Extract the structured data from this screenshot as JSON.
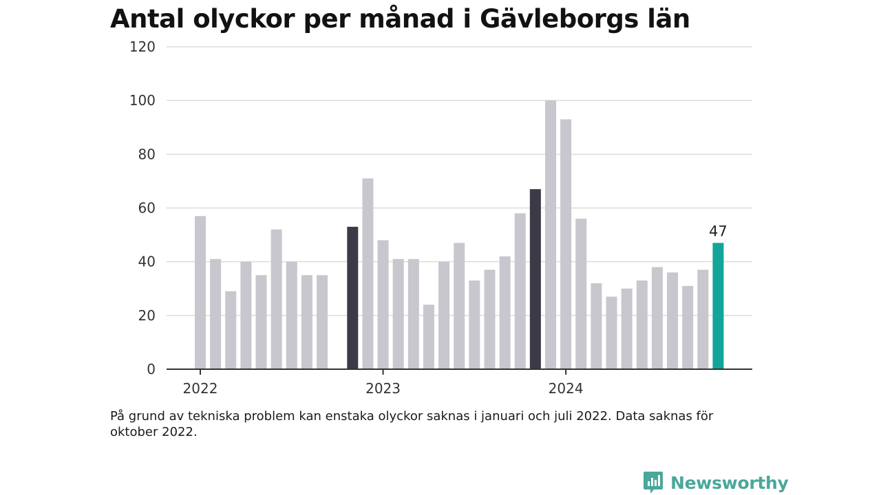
{
  "title": "Antal olyckor per månad i Gävleborgs län",
  "note": "På grund av tekniska problem kan enstaka olyckor saknas i januari och juli 2022. Data saknas för oktober 2022.",
  "brand": {
    "name": "Newsworthy",
    "icon": "newsworthy-logo-icon"
  },
  "colors": {
    "bar": "#c8c7cd",
    "january": "#3b3a46",
    "latest": "#13a59a",
    "grid": "#dcdcdc",
    "axis": "#333333"
  },
  "chart_data": {
    "type": "bar",
    "title": "Antal olyckor per månad i Gävleborgs län",
    "xlabel": "",
    "ylabel": "",
    "ylim": [
      0,
      120
    ],
    "yticks": [
      0,
      20,
      40,
      60,
      80,
      100,
      120
    ],
    "xticks": [
      {
        "label": "2022",
        "month": "2022-01"
      },
      {
        "label": "2023",
        "month": "2023-01"
      },
      {
        "label": "2024",
        "month": "2024-01"
      }
    ],
    "categories": [
      "2022-01",
      "2022-02",
      "2022-03",
      "2022-04",
      "2022-05",
      "2022-06",
      "2022-07",
      "2022-08",
      "2022-09",
      "2022-10",
      "2022-11",
      "2022-12",
      "2023-01",
      "2023-02",
      "2023-03",
      "2023-04",
      "2023-05",
      "2023-06",
      "2023-07",
      "2023-08",
      "2023-09",
      "2023-10",
      "2023-11",
      "2023-12",
      "2024-01",
      "2024-02",
      "2024-03",
      "2024-04",
      "2024-05",
      "2024-06",
      "2024-07",
      "2024-08",
      "2024-09",
      "2024-10",
      "2024-11"
    ],
    "values": [
      57,
      41,
      29,
      40,
      35,
      52,
      40,
      35,
      35,
      null,
      53,
      71,
      48,
      41,
      41,
      24,
      40,
      47,
      33,
      37,
      42,
      58,
      67,
      100,
      93,
      56,
      32,
      27,
      30,
      33,
      38,
      36,
      31,
      37,
      47
    ],
    "highlight_dark": [
      "2022-11",
      "2023-11"
    ],
    "highlight_latest": "2024-11",
    "data_labels": [
      {
        "category": "2024-11",
        "text": "47"
      }
    ],
    "grid": true,
    "legend": "none"
  }
}
